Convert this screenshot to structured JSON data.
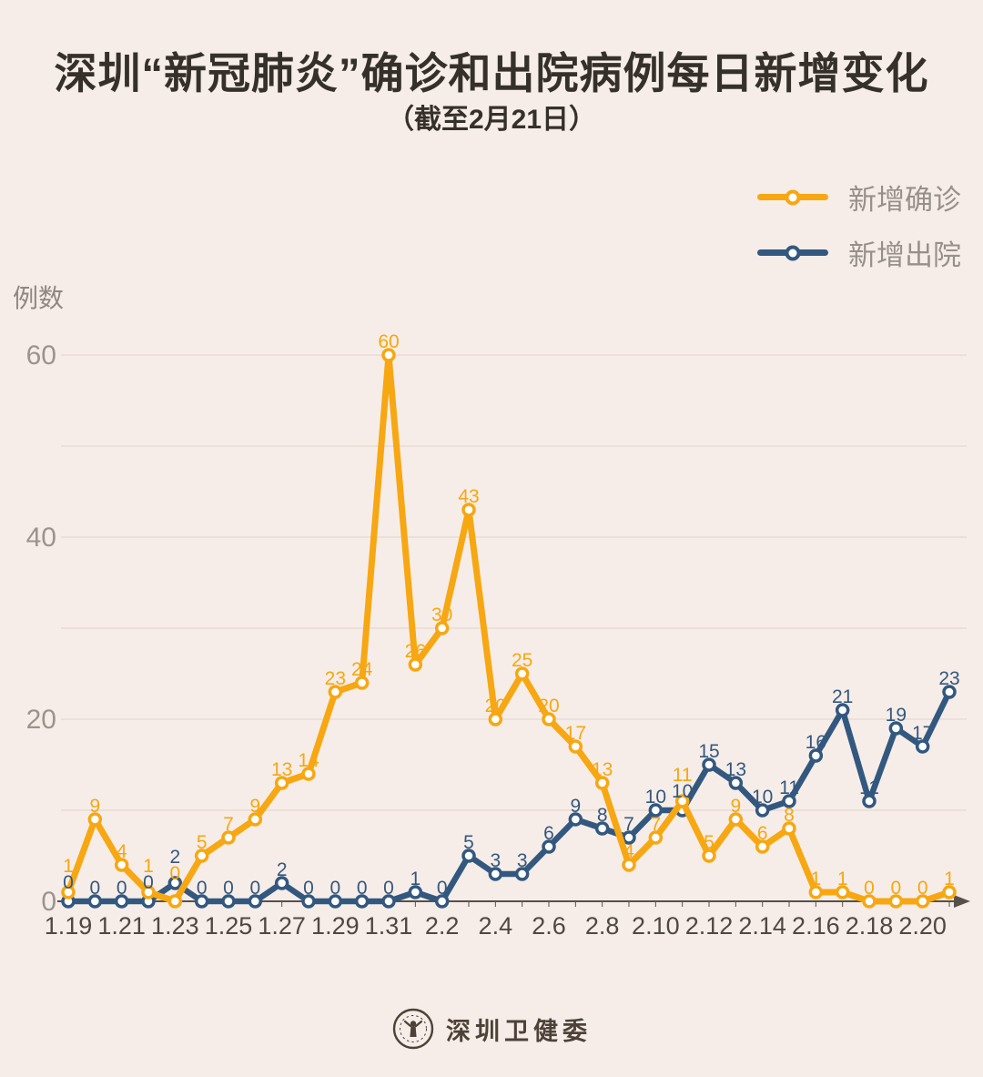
{
  "chart_data": {
    "type": "line",
    "title": "深圳“新冠肺炎”确诊和出院病例每日新增变化",
    "subtitle": "（截至2月21日）",
    "ylabel": "例数",
    "xlabel": "",
    "ylim": [
      0,
      60
    ],
    "ytick_labels": [
      0,
      20,
      40,
      60
    ],
    "grid_step": 10,
    "grid": "on",
    "legend_position": "top-right",
    "x_label_every": 2,
    "x": [
      "1.19",
      "1.20",
      "1.21",
      "1.22",
      "1.23",
      "1.24",
      "1.25",
      "1.26",
      "1.27",
      "1.28",
      "1.29",
      "1.30",
      "1.31",
      "2.1",
      "2.2",
      "2.3",
      "2.4",
      "2.5",
      "2.6",
      "2.7",
      "2.8",
      "2.9",
      "2.10",
      "2.11",
      "2.12",
      "2.13",
      "2.14",
      "2.15",
      "2.16",
      "2.17",
      "2.18",
      "2.19",
      "2.20",
      "2.21"
    ],
    "series": [
      {
        "name": "新增确诊",
        "color": "#F7A712",
        "values": [
          1,
          9,
          4,
          1,
          0,
          5,
          7,
          9,
          13,
          14,
          23,
          24,
          60,
          26,
          30,
          43,
          20,
          25,
          20,
          17,
          13,
          4,
          7,
          11,
          5,
          9,
          6,
          8,
          1,
          1,
          0,
          0,
          0,
          1
        ]
      },
      {
        "name": "新增出院",
        "color": "#33587F",
        "values": [
          0,
          0,
          0,
          0,
          2,
          0,
          0,
          0,
          2,
          0,
          0,
          0,
          0,
          1,
          0,
          5,
          3,
          3,
          6,
          9,
          8,
          7,
          10,
          10,
          15,
          13,
          10,
          11,
          16,
          21,
          11,
          19,
          17,
          23
        ]
      }
    ]
  },
  "footer": {
    "label": "深圳卫健委"
  },
  "colors": {
    "background": "#F6EDE8",
    "grid": "#E8DBD4",
    "axis": "#57504A",
    "x_tick_text": "#4F4840",
    "y_tick_text": "#9B948C",
    "title_text": "#36302A",
    "legend_text": "#97908A",
    "footer_text": "#4C4238"
  }
}
